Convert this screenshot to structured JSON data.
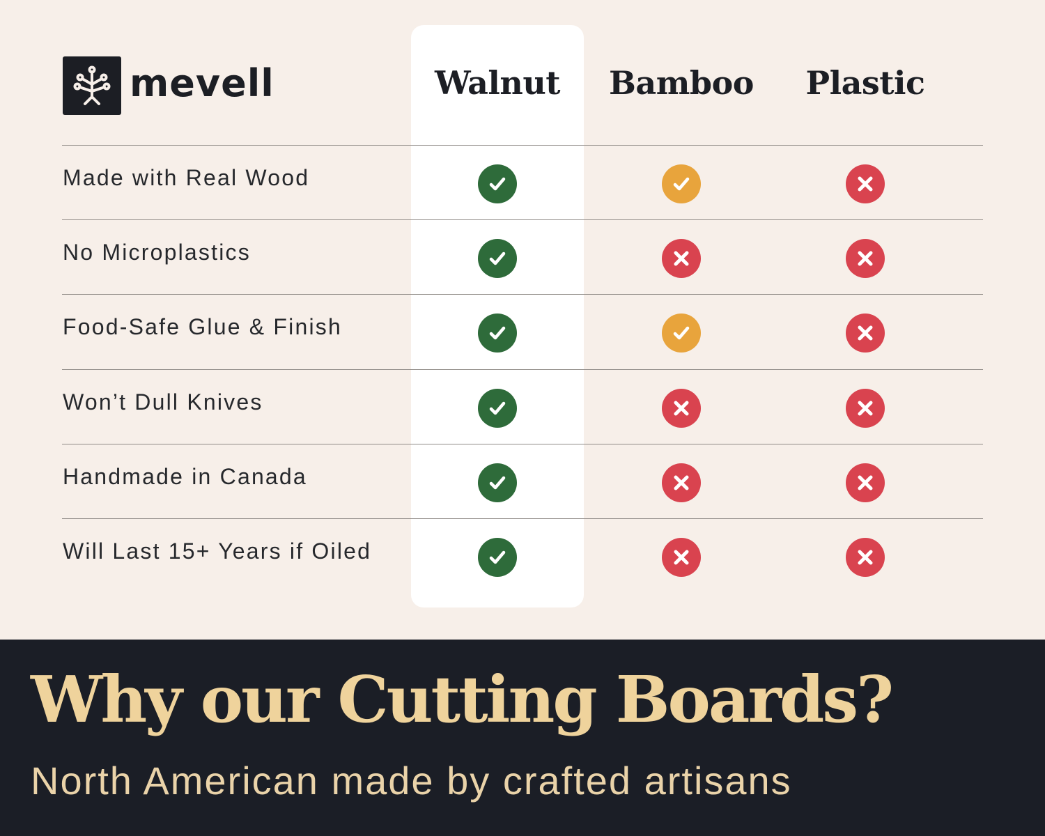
{
  "brand": {
    "name": "mevell",
    "logo_icon": "tree-icon"
  },
  "columns": [
    "Walnut",
    "Bamboo",
    "Plastic"
  ],
  "colors": {
    "check_green": "#2e6b3a",
    "partial_orange": "#e8a43c",
    "cross_red": "#d9434f",
    "background": "#f7efe9",
    "band": "#1b1e26",
    "title_gold": "#efd39c"
  },
  "rows": [
    {
      "label": "Made with Real Wood",
      "values": [
        "check",
        "partial",
        "cross"
      ]
    },
    {
      "label": "No Microplastics",
      "values": [
        "check",
        "cross",
        "cross"
      ]
    },
    {
      "label": "Food-Safe Glue & Finish",
      "values": [
        "check",
        "partial",
        "cross"
      ]
    },
    {
      "label": "Won’t Dull Knives",
      "values": [
        "check",
        "cross",
        "cross"
      ]
    },
    {
      "label": "Handmade in Canada",
      "values": [
        "check",
        "cross",
        "cross"
      ]
    },
    {
      "label": "Will Last 15+ Years if Oiled",
      "values": [
        "check",
        "cross",
        "cross"
      ]
    }
  ],
  "footer": {
    "title": "Why our Cutting Boards?",
    "subtitle": "North American made by crafted artisans"
  }
}
